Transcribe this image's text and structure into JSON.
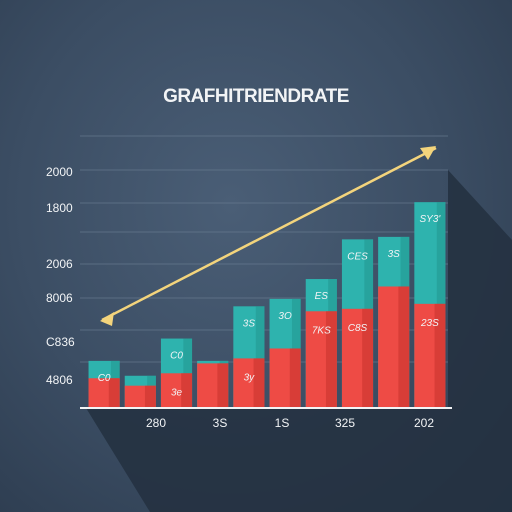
{
  "chart_data": {
    "type": "bar",
    "title": "GRAFHITRIENDRATE",
    "xlabel": "",
    "ylabel": "",
    "y_tick_labels": [
      "2000",
      "1800",
      "2006",
      "8006",
      "C836",
      "4806"
    ],
    "x_tick_labels": [
      "280",
      "3S",
      "1S",
      "325",
      "202"
    ],
    "ylim": [
      0,
      1
    ],
    "grid": true,
    "legend": "none",
    "bars": [
      {
        "teal": 0.19,
        "red": 0.12,
        "label_top": "C0",
        "label_bottom": ""
      },
      {
        "teal": 0.13,
        "red": 0.09,
        "label_top": "",
        "label_bottom": ""
      },
      {
        "teal": 0.28,
        "red": 0.14,
        "label_top": "C0",
        "label_bottom": "3e"
      },
      {
        "teal": 0.19,
        "red": 0.18,
        "label_top": "",
        "label_bottom": ""
      },
      {
        "teal": 0.41,
        "red": 0.2,
        "label_top": "3S",
        "label_bottom": "3y"
      },
      {
        "teal": 0.44,
        "red": 0.24,
        "label_top": "3O",
        "label_bottom": ""
      },
      {
        "teal": 0.52,
        "red": 0.39,
        "label_top": "ES",
        "label_bottom": "7KS"
      },
      {
        "teal": 0.68,
        "red": 0.4,
        "label_top": "CES",
        "label_bottom": "C8S"
      },
      {
        "teal": 0.69,
        "red": 0.49,
        "label_top": "3S",
        "label_bottom": ""
      },
      {
        "teal": 0.83,
        "red": 0.42,
        "label_top": "SY3'",
        "label_bottom": "23S"
      }
    ],
    "trend_arrow": {
      "from": 0.27,
      "to": 1.0
    },
    "colors": {
      "background": "#3a4c61",
      "teal": "#2eb3ae",
      "teal_dark": "#23958f",
      "red": "#ee4b45",
      "red_dark": "#c9332f",
      "arrow": "#f3d47c",
      "text": "#f2f4f6"
    }
  }
}
